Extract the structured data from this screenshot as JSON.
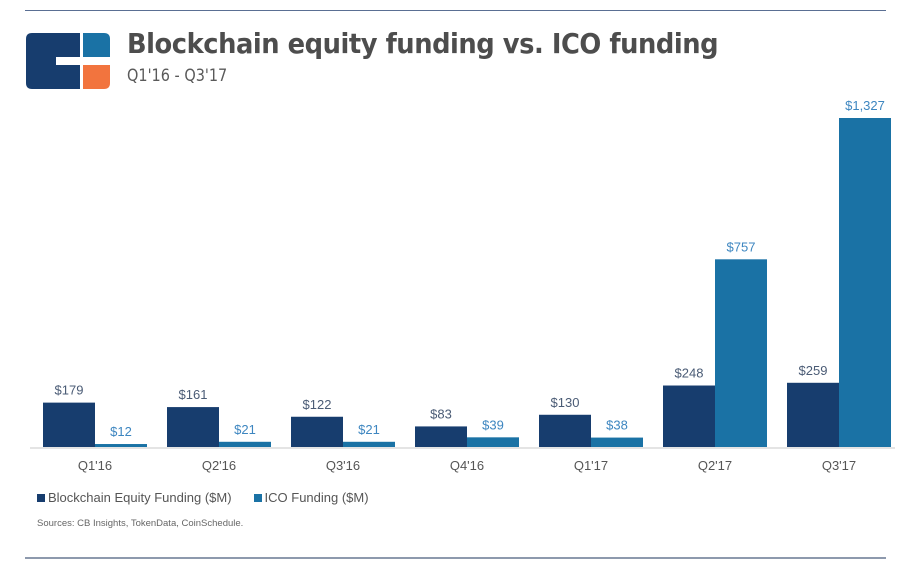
{
  "header": {
    "title": "Blockchain equity funding vs. ICO funding",
    "subtitle": "Q1'16 - Q3'17"
  },
  "colors": {
    "equity": "#173d6e",
    "ico": "#1a72a5",
    "logo_dark": "#173d6e",
    "logo_blue": "#1a72a5",
    "logo_orange": "#f2743e",
    "label_equity": "#4a5b75",
    "label_ico": "#3d86c0",
    "axis": "#e4e4e4"
  },
  "chart_data": {
    "type": "bar",
    "title": "Blockchain equity funding vs. ICO funding",
    "subtitle": "Q1'16 - Q3'17",
    "xlabel": "",
    "ylabel": "",
    "ylim": [
      0,
      1327
    ],
    "grid": false,
    "legend_position": "bottom-left",
    "categories": [
      "Q1'16",
      "Q2'16",
      "Q3'16",
      "Q4'16",
      "Q1'17",
      "Q2'17",
      "Q3'17"
    ],
    "series": [
      {
        "name": "Blockchain Equity Funding ($M)",
        "values": [
          179,
          161,
          122,
          83,
          130,
          248,
          259
        ],
        "labels": [
          "$179",
          "$161",
          "$122",
          "$83",
          "$130",
          "$248",
          "$259"
        ]
      },
      {
        "name": "ICO Funding ($M)",
        "values": [
          12,
          21,
          21,
          39,
          38,
          757,
          1327
        ],
        "labels": [
          "$12",
          "$21",
          "$21",
          "$39",
          "$38",
          "$757",
          "$1,327"
        ]
      }
    ]
  },
  "legend": {
    "items": [
      {
        "label": "Blockchain Equity Funding ($M)",
        "series": "equity"
      },
      {
        "label": "ICO Funding ($M)",
        "series": "ico"
      }
    ]
  },
  "footer": {
    "sources": "Sources: CB Insights, TokenData, CoinSchedule."
  }
}
